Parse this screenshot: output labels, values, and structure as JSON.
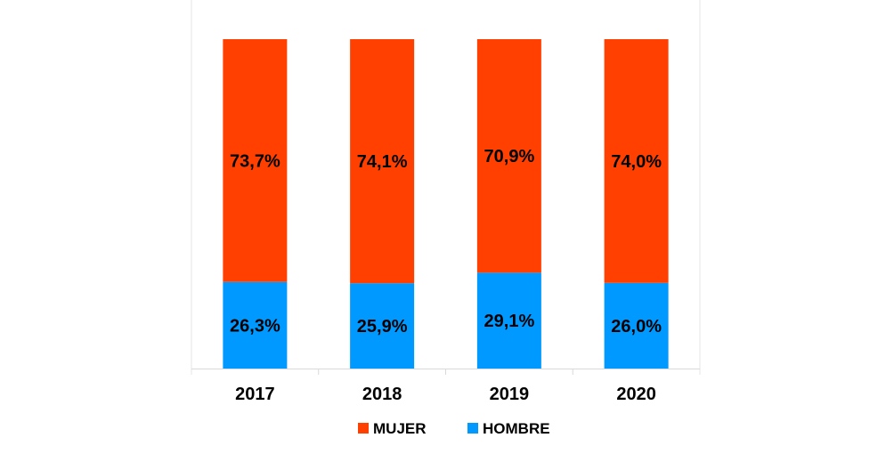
{
  "chart_data": {
    "type": "bar",
    "stacked": true,
    "percent": true,
    "categories": [
      "2017",
      "2018",
      "2019",
      "2020"
    ],
    "series": [
      {
        "name": "HOMBRE",
        "color": "#0099FF",
        "values": [
          26.3,
          25.9,
          29.1,
          26.0
        ],
        "labels": [
          "26,3%",
          "25,9%",
          "29,1%",
          "26,0%"
        ]
      },
      {
        "name": "MUJER",
        "color": "#FF4000",
        "values": [
          73.7,
          74.1,
          70.9,
          74.0
        ],
        "labels": [
          "73,7%",
          "74,1%",
          "70,9%",
          "74,0%"
        ]
      }
    ],
    "legend": {
      "placement": "bottom",
      "order": [
        "MUJER",
        "HOMBRE"
      ]
    },
    "ylim": [
      0,
      100
    ],
    "grid": false,
    "title": "",
    "xlabel": "",
    "ylabel": ""
  }
}
